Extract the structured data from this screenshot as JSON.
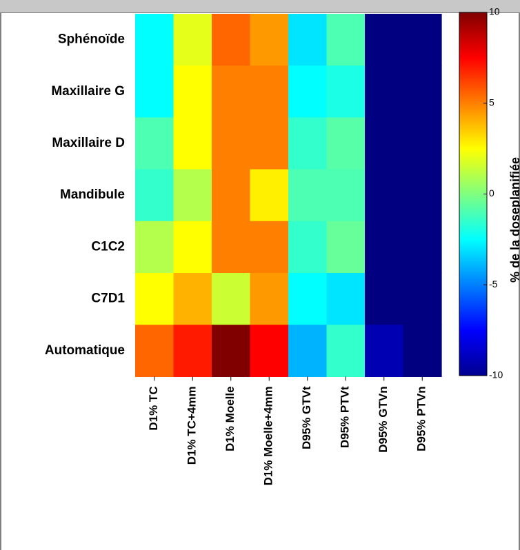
{
  "chart_data": {
    "type": "heatmap",
    "rows": [
      "Sphénoïde",
      "Maxillaire G",
      "Maxillaire D",
      "Mandibule",
      "C1C2",
      "C7D1",
      "Automatique"
    ],
    "columns": [
      "D1% TC",
      "D1% TC+4mm",
      "D1% Moelle",
      "D1% Moelle+4mm",
      "D95% GTVt",
      "D95% PTVt",
      "D95% GTVn",
      "D95% PTVn"
    ],
    "values": [
      [
        -2.5,
        2.0,
        5.5,
        4.5,
        -3.0,
        -1.0,
        -10,
        -10
      ],
      [
        -2.5,
        2.5,
        5.0,
        5.0,
        -2.5,
        -2.0,
        -10,
        -10
      ],
      [
        -1.0,
        2.5,
        5.0,
        5.0,
        -1.5,
        -0.8,
        -10,
        -10
      ],
      [
        -1.5,
        1.0,
        5.0,
        2.8,
        -1.0,
        -1.0,
        -10,
        -10
      ],
      [
        1.0,
        2.5,
        5.0,
        5.0,
        -1.5,
        -0.5,
        -10,
        -10
      ],
      [
        2.5,
        4.0,
        1.5,
        4.5,
        -2.5,
        -3.0,
        -10,
        -10
      ],
      [
        5.5,
        7.0,
        10.0,
        7.5,
        -4.0,
        -1.5,
        -9.0,
        -10
      ]
    ],
    "colorbar": {
      "min": -10,
      "max": 10,
      "ticks": [
        "10",
        "5",
        "0",
        "-5",
        "-10"
      ],
      "label": "% de la doseplanifiée",
      "colormap": "jet"
    }
  }
}
